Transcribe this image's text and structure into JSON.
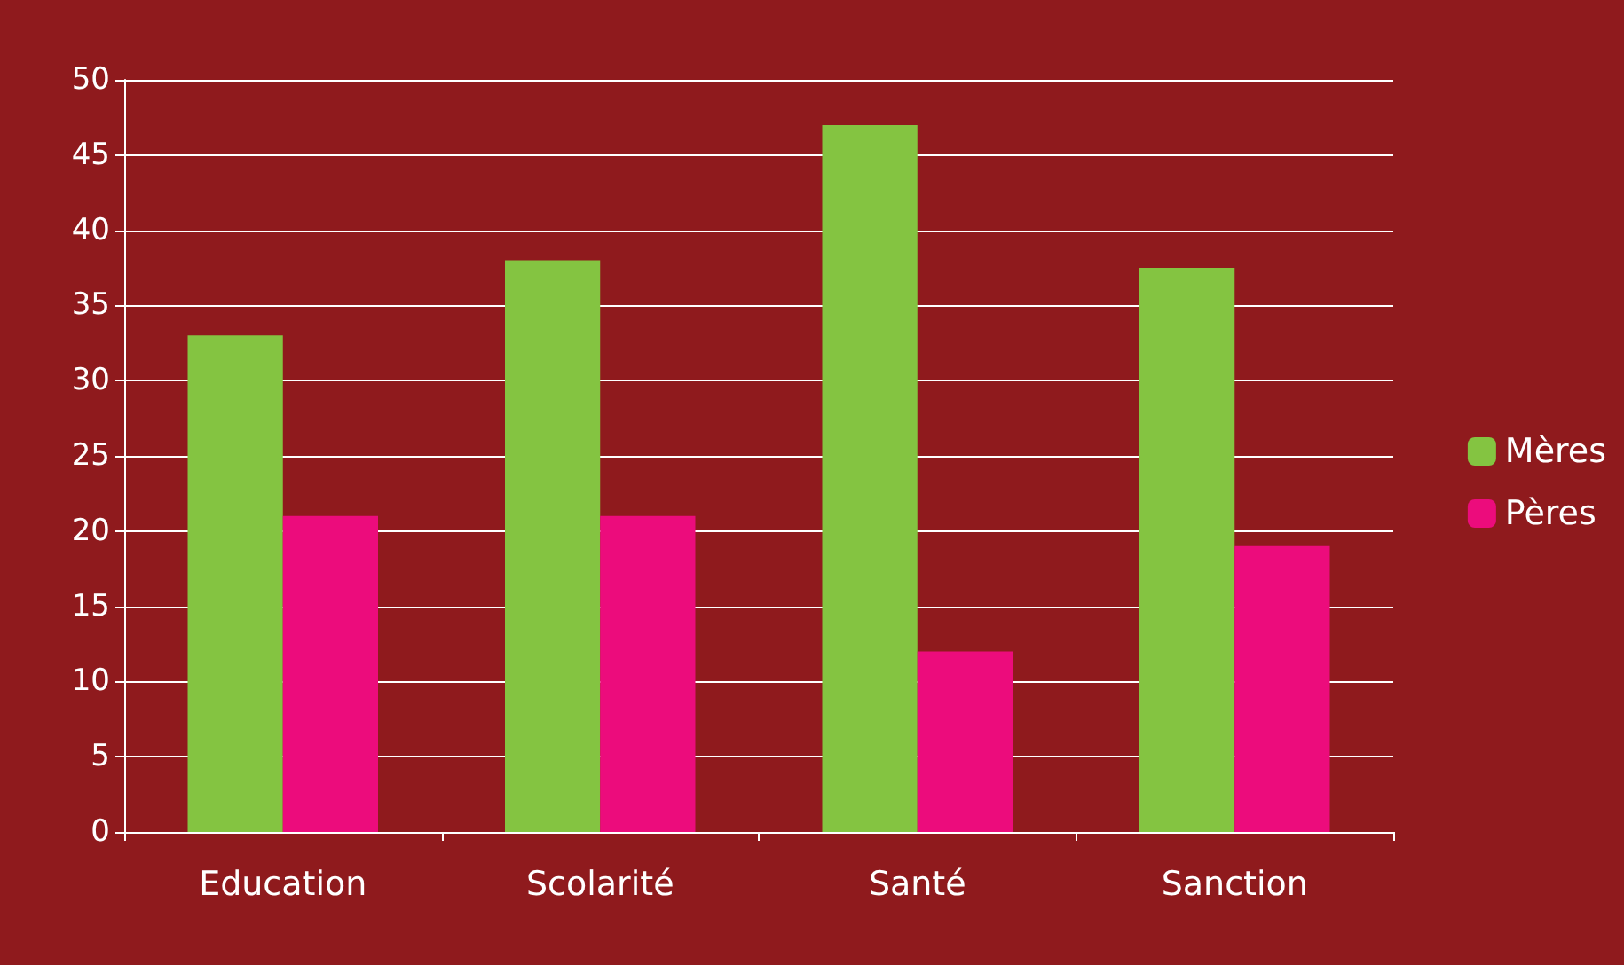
{
  "chart_data": {
    "type": "bar",
    "categories": [
      "Education",
      "Scolarité",
      "Santé",
      "Sanction"
    ],
    "series": [
      {
        "name": "Mères",
        "color": "#84c441",
        "values": [
          33,
          38,
          47,
          37.5
        ]
      },
      {
        "name": "Pères",
        "color": "#ec0c7c",
        "values": [
          21,
          21,
          12,
          19
        ]
      }
    ],
    "ylim": [
      0,
      50
    ],
    "yticks": [
      0,
      5,
      10,
      15,
      20,
      25,
      30,
      35,
      40,
      45,
      50
    ],
    "grid": "y",
    "legend": "right"
  }
}
